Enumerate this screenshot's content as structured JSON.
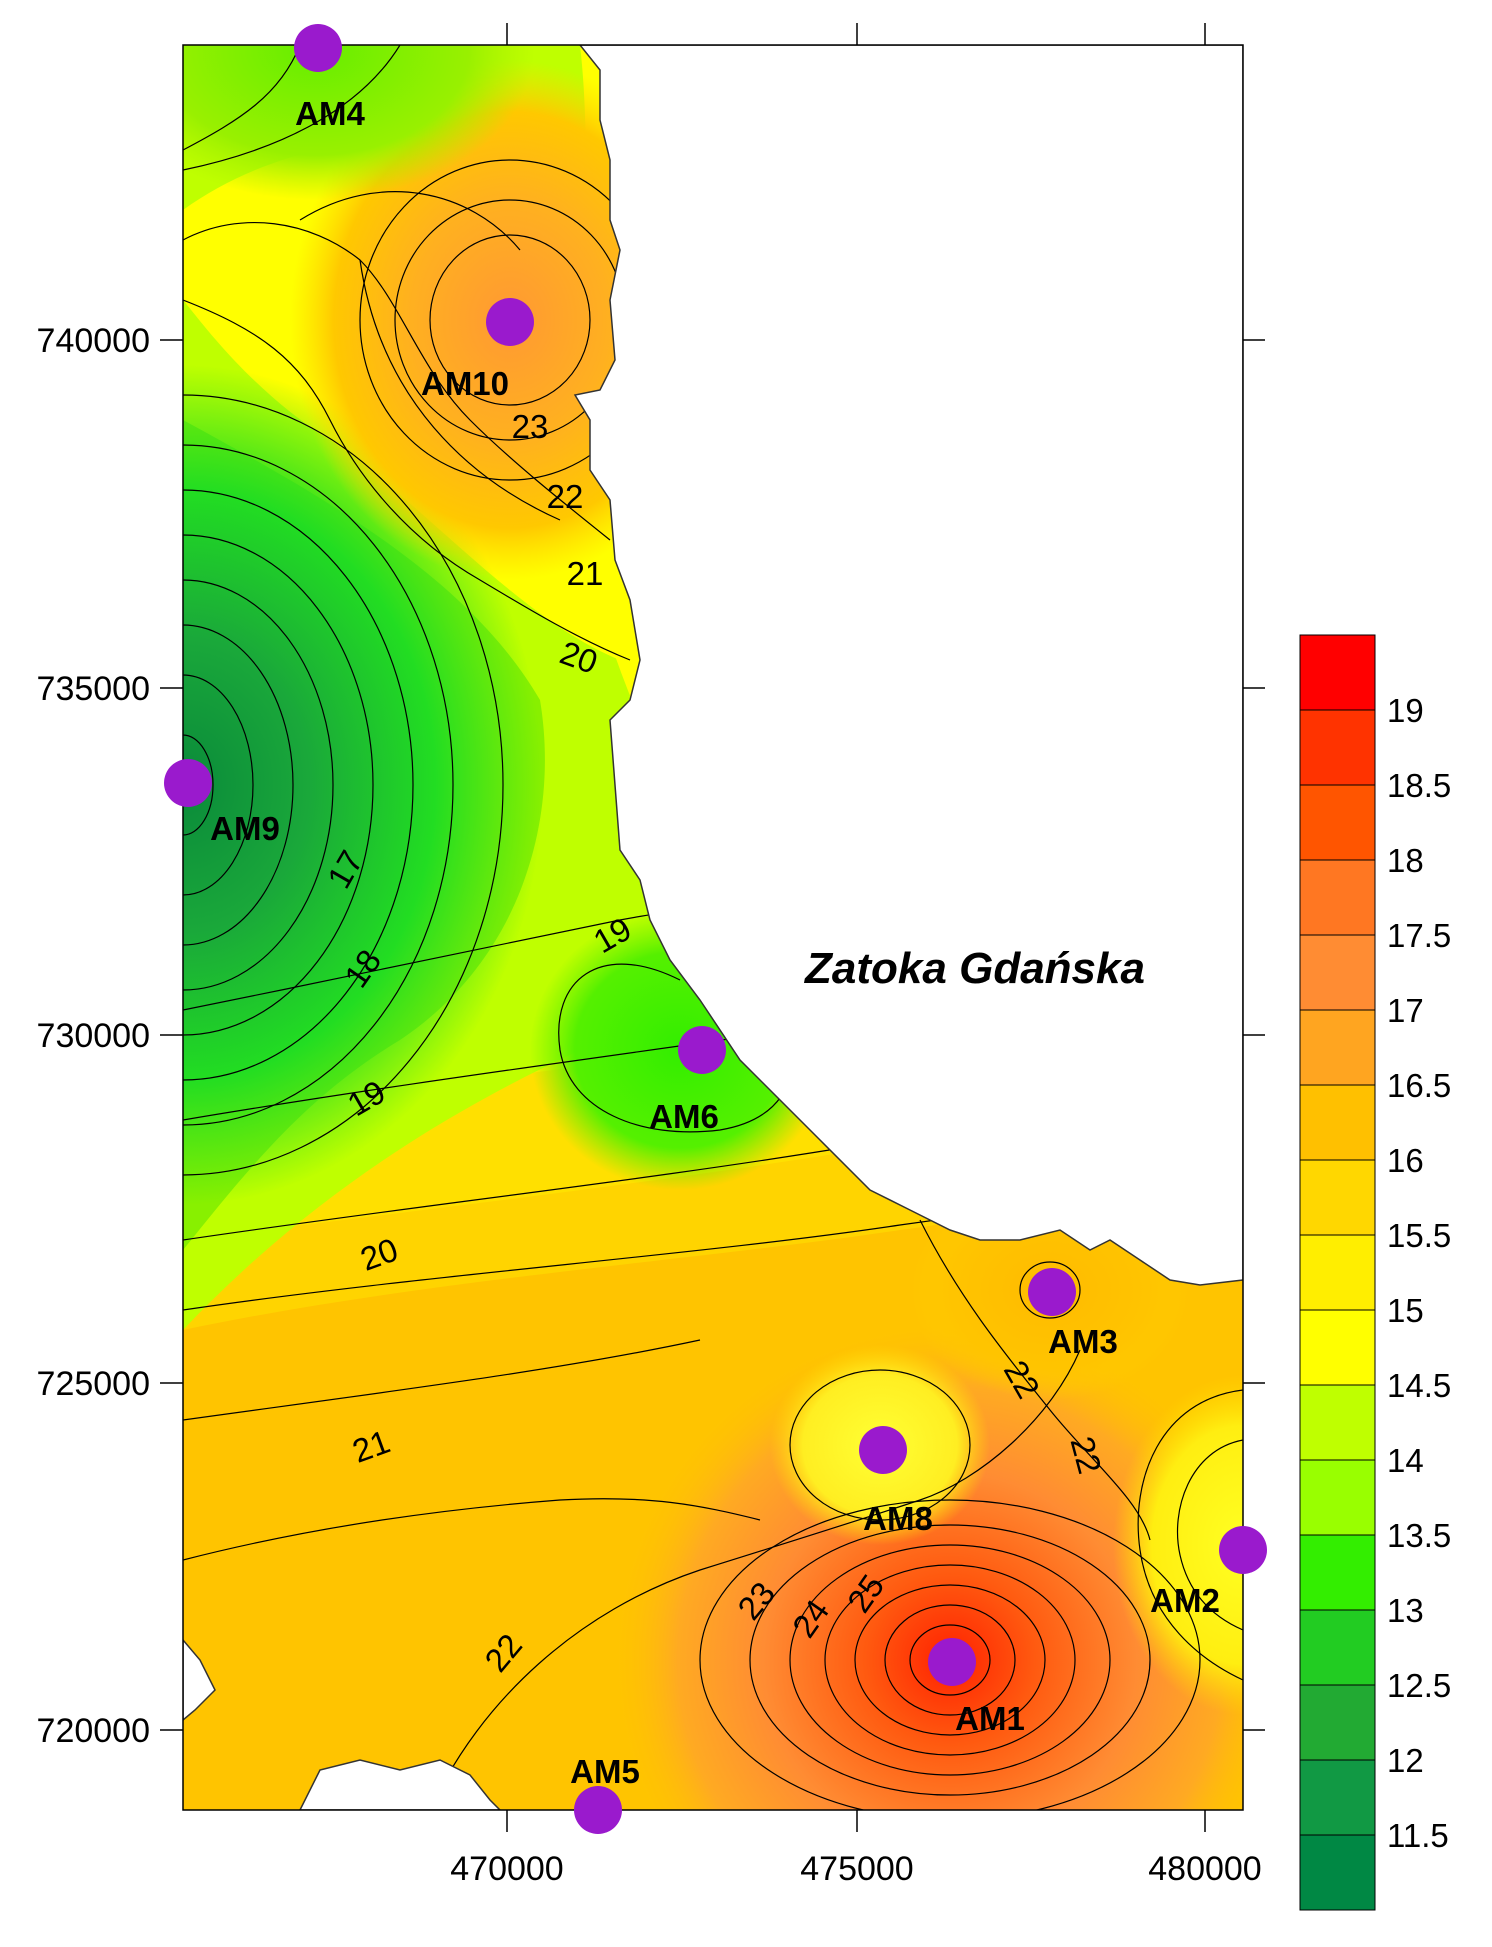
{
  "x_axis": {
    "ticks": [
      "470000",
      "475000",
      "480000"
    ]
  },
  "y_axis": {
    "ticks": [
      "740000",
      "735000",
      "730000",
      "725000",
      "720000"
    ]
  },
  "sea_label": "Zatoka Gdańska",
  "stations": [
    {
      "name": "AM4"
    },
    {
      "name": "AM10"
    },
    {
      "name": "AM9"
    },
    {
      "name": "AM6"
    },
    {
      "name": "AM3"
    },
    {
      "name": "AM8"
    },
    {
      "name": "AM2"
    },
    {
      "name": "AM1"
    },
    {
      "name": "AM5"
    }
  ],
  "contour_labels": [
    "23",
    "22",
    "21",
    "20",
    "17",
    "18",
    "19",
    "19",
    "20",
    "21",
    "22",
    "22",
    "22",
    "23",
    "24",
    "25"
  ],
  "legend": {
    "labels": [
      "19",
      "18.5",
      "18",
      "17.5",
      "17",
      "16.5",
      "16",
      "15.5",
      "15",
      "14.5",
      "14",
      "13.5",
      "13",
      "12.5",
      "12",
      "11.5"
    ],
    "colors": [
      "#ff0000",
      "#ff3300",
      "#ff5500",
      "#ff7722",
      "#ff8c33",
      "#ffa520",
      "#ffc000",
      "#ffd700",
      "#ffee00",
      "#ffff00",
      "#bfff00",
      "#99ff00",
      "#33ee00",
      "#22cc22",
      "#22aa33",
      "#119944",
      "#008844"
    ]
  }
}
